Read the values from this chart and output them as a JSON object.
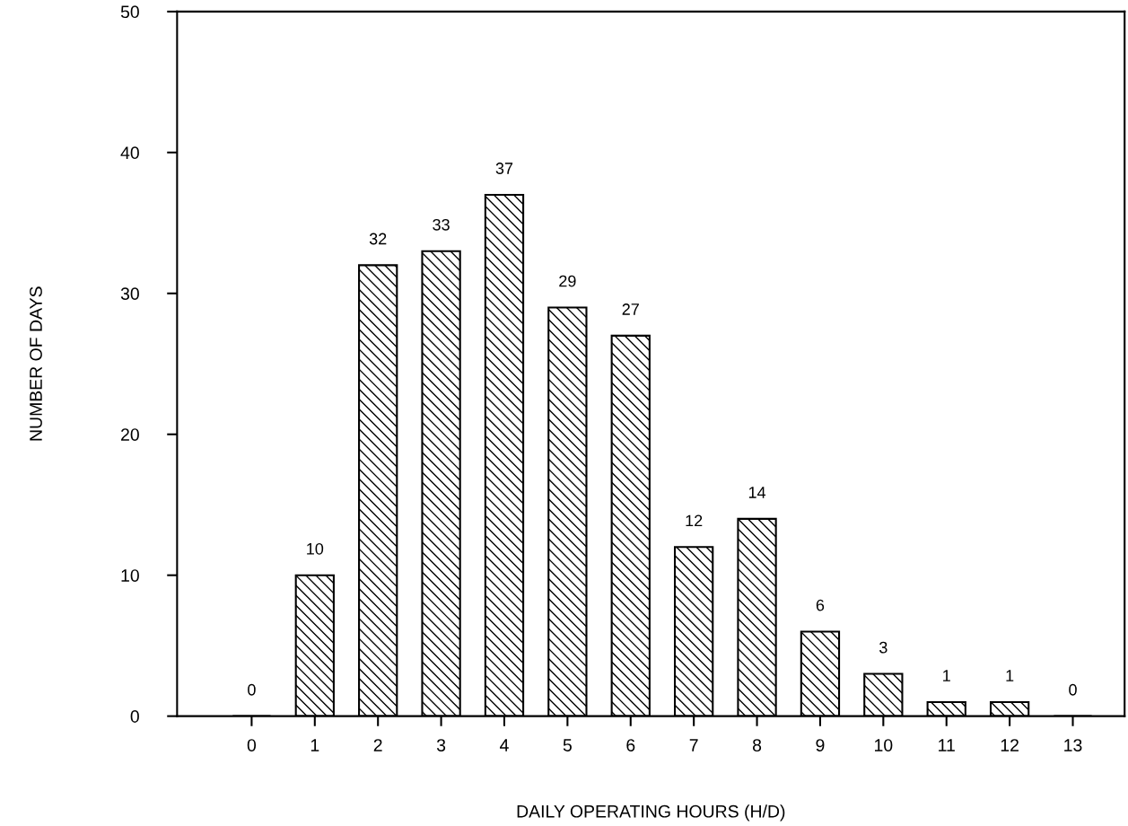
{
  "chart_data": {
    "type": "bar",
    "xlabel": "DAILY OPERATING HOURS (H/D)",
    "ylabel": "NUMBER OF DAYS",
    "categories": [
      "0",
      "1",
      "2",
      "3",
      "4",
      "5",
      "6",
      "7",
      "8",
      "9",
      "10",
      "11",
      "12",
      "13"
    ],
    "values": [
      0,
      10,
      32,
      33,
      37,
      29,
      27,
      12,
      14,
      6,
      3,
      1,
      1,
      0
    ],
    "color": "#000000",
    "data_labels": true,
    "grid": false,
    "ylim": [
      0,
      50
    ],
    "yticks": [
      0,
      10,
      20,
      30,
      40,
      50
    ]
  }
}
